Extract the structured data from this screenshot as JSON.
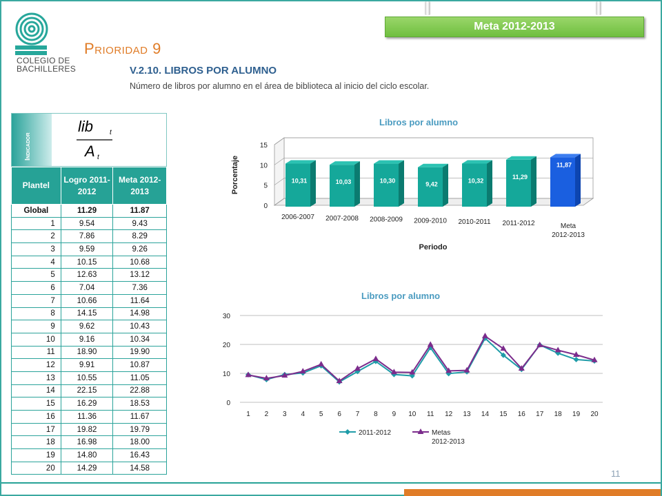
{
  "header": {
    "logo_line1": "COLEGIO DE",
    "logo_line2": "BACHILLERES",
    "meta_banner": "Meta 2012-2013",
    "title": "Prioridad 9",
    "subtitle": "V.2.10.   LIBROS POR ALUMNO",
    "description": "Número de libros por alumno en el área de biblioteca  al inicio del ciclo escolar."
  },
  "indicator": {
    "label": "Indicador",
    "formula_numerator": "lib",
    "formula_denominator": "A",
    "formula_subscript": "t"
  },
  "table": {
    "headers": [
      "Plantel",
      "Logro 2011-2012",
      "Meta 2012-2013"
    ],
    "global": {
      "plantel": "Global",
      "logro": "11.29",
      "meta": "11.87"
    },
    "rows": [
      [
        "1",
        "9.54",
        "9.43"
      ],
      [
        "2",
        "7.86",
        "8.29"
      ],
      [
        "3",
        "9.59",
        "9.26"
      ],
      [
        "4",
        "10.15",
        "10.68"
      ],
      [
        "5",
        "12.63",
        "13.12"
      ],
      [
        "6",
        "7.04",
        "7.36"
      ],
      [
        "7",
        "10.66",
        "11.64"
      ],
      [
        "8",
        "14.15",
        "14.98"
      ],
      [
        "9",
        "9.62",
        "10.43"
      ],
      [
        "10",
        "9.16",
        "10.34"
      ],
      [
        "11",
        "18.90",
        "19.90"
      ],
      [
        "12",
        "9.91",
        "10.87"
      ],
      [
        "13",
        "10.55",
        "11.05"
      ],
      [
        "14",
        "22.15",
        "22.88"
      ],
      [
        "15",
        "16.29",
        "18.53"
      ],
      [
        "16",
        "11.36",
        "11.67"
      ],
      [
        "17",
        "19.82",
        "19.79"
      ],
      [
        "18",
        "16.98",
        "18.00"
      ],
      [
        "19",
        "14.80",
        "16.43"
      ],
      [
        "20",
        "14.29",
        "14.58"
      ]
    ]
  },
  "chart_data": [
    {
      "type": "bar",
      "title": "Libros por alumno",
      "xlabel": "Periodo",
      "ylabel": "Porcentaje",
      "categories": [
        "2006-2007",
        "2007-2008",
        "2008-2009",
        "2009-2010",
        "2010-2011",
        "2011-2012",
        "Meta 2012-2013"
      ],
      "values": [
        10.31,
        10.03,
        10.3,
        9.42,
        10.32,
        11.29,
        11.87
      ],
      "data_labels": [
        "10,31",
        "10,03",
        "10,30",
        "9,42",
        "10,32",
        "11,29",
        "11,87"
      ],
      "yticks": [
        0,
        5,
        10,
        15
      ],
      "ylim": [
        0,
        15
      ],
      "colors": {
        "bars": "#15a89a",
        "meta": "#1a5fe0"
      }
    },
    {
      "type": "line",
      "title": "Libros por alumno",
      "x": [
        1,
        2,
        3,
        4,
        5,
        6,
        7,
        8,
        9,
        10,
        11,
        12,
        13,
        14,
        15,
        16,
        17,
        18,
        19,
        20
      ],
      "yticks": [
        0,
        10,
        20,
        30
      ],
      "ylim": [
        0,
        30
      ],
      "legend_position": "bottom",
      "series": [
        {
          "name": "2011-2012",
          "color": "#1f9ca8",
          "marker": "diamond",
          "values": [
            9.54,
            7.86,
            9.59,
            10.15,
            12.63,
            7.04,
            10.66,
            14.15,
            9.62,
            9.16,
            18.9,
            9.91,
            10.55,
            22.15,
            16.29,
            11.36,
            19.82,
            16.98,
            14.8,
            14.29
          ]
        },
        {
          "name": "Metas 2012-2013",
          "color": "#7b2c8c",
          "marker": "triangle",
          "values": [
            9.43,
            8.29,
            9.26,
            10.68,
            13.12,
            7.36,
            11.64,
            14.98,
            10.43,
            10.34,
            19.9,
            10.87,
            11.05,
            22.88,
            18.53,
            11.67,
            19.79,
            18.0,
            16.43,
            14.58
          ]
        }
      ]
    }
  ],
  "footer": {
    "page_number": "11"
  }
}
